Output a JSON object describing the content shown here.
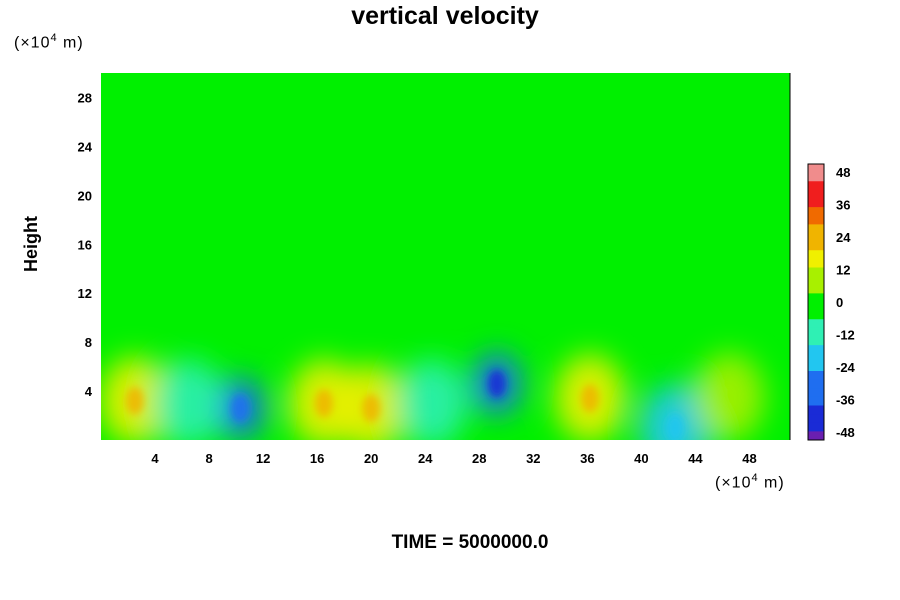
{
  "chart_data": {
    "type": "heatmap",
    "title": "vertical velocity",
    "ylabel": "Height",
    "y_unit_text": "(×10",
    "y_unit_exp": "4",
    "y_unit_tail": " m)",
    "x_unit_text": "(×10",
    "x_unit_exp": "4",
    "x_unit_tail": " m)",
    "xlim": [
      0,
      51
    ],
    "ylim": [
      0,
      30
    ],
    "x_ticks": [
      "4",
      "8",
      "12",
      "16",
      "20",
      "24",
      "28",
      "32",
      "36",
      "40",
      "44",
      "48"
    ],
    "y_ticks": [
      "4",
      "8",
      "12",
      "16",
      "20",
      "24",
      "28"
    ],
    "colorbar": {
      "min": -48,
      "max": 48,
      "ticks": [
        "48",
        "36",
        "24",
        "12",
        "0",
        "-12",
        "-24",
        "-36",
        "-48"
      ]
    },
    "features": [
      {
        "x": 2.5,
        "y": 3.2,
        "value": 16
      },
      {
        "x": 10.3,
        "y": 2.6,
        "value": -30
      },
      {
        "x": 16.5,
        "y": 3.0,
        "value": 18
      },
      {
        "x": 20.0,
        "y": 2.6,
        "value": 16
      },
      {
        "x": 29.3,
        "y": 4.6,
        "value": -34
      },
      {
        "x": 36.2,
        "y": 3.4,
        "value": 18
      },
      {
        "x": 42.5,
        "y": 1.0,
        "value": -18
      },
      {
        "x": 24.5,
        "y": 3.0,
        "value": -10
      },
      {
        "x": 6.5,
        "y": 3.0,
        "value": -8
      },
      {
        "x": 46.5,
        "y": 3.5,
        "value": 6
      }
    ],
    "footer": "TIME = 5000000.0"
  }
}
